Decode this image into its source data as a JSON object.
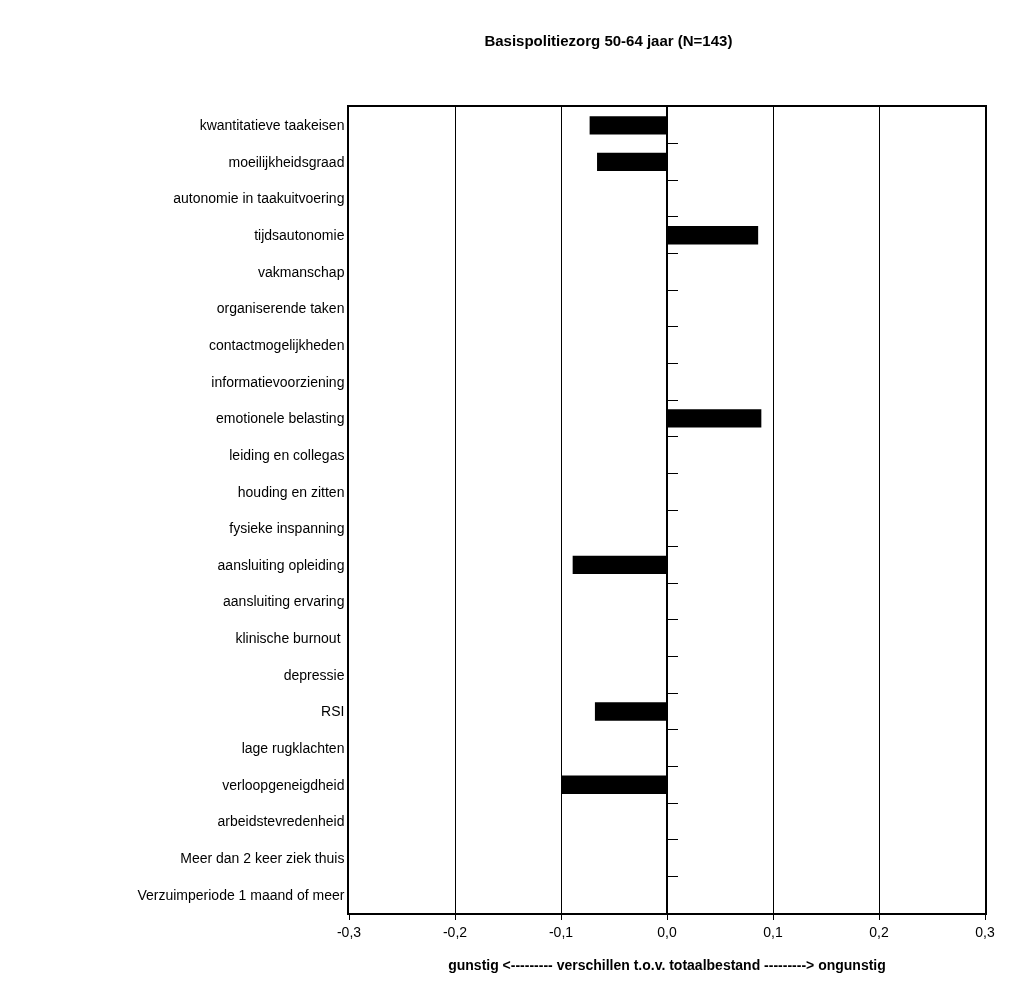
{
  "chart_data": {
    "type": "bar",
    "orientation": "horizontal",
    "title": "Basispolitiezorg 50-64 jaar (N=143)",
    "xlabel": "gunstig <--------- verschillen t.o.v. totaalbestand ---------> ongunstig",
    "categories": [
      "kwantitatieve taakeisen",
      "moeilijkheidsgraad",
      "autonomie in taakuitvoering",
      "tijdsautonomie",
      "vakmanschap",
      "organiserende taken",
      "contactmogelijkheden",
      "informatievoorziening",
      "emotionele belasting",
      "leiding en collegas",
      "houding en zitten",
      "fysieke inspanning",
      "aansluiting opleiding",
      "aansluiting ervaring",
      "klinische burnout ",
      "depressie",
      "RSI",
      "lage rugklachten",
      "verloopgeneigdheid",
      "arbeidstevredenheid",
      "Meer dan 2 keer ziek thuis",
      "Verzuimperiode 1 maand of meer"
    ],
    "values": [
      -0.073,
      -0.066,
      0,
      0.086,
      0,
      0,
      0,
      0,
      0.089,
      0,
      0,
      0,
      -0.089,
      0,
      0,
      0,
      -0.068,
      0,
      -0.1,
      0,
      0,
      0
    ],
    "color": "#000000",
    "xlim": [
      -0.3,
      0.3
    ],
    "xticks": [
      {
        "value": -0.3,
        "label": "-0,3"
      },
      {
        "value": -0.2,
        "label": "-0,2"
      },
      {
        "value": -0.1,
        "label": "-0,1"
      },
      {
        "value": 0,
        "label": "0,0"
      },
      {
        "value": 0.1,
        "label": "0,1"
      },
      {
        "value": 0.2,
        "label": "0,2"
      },
      {
        "value": 0.3,
        "label": "0,3"
      }
    ],
    "grid": "x"
  }
}
